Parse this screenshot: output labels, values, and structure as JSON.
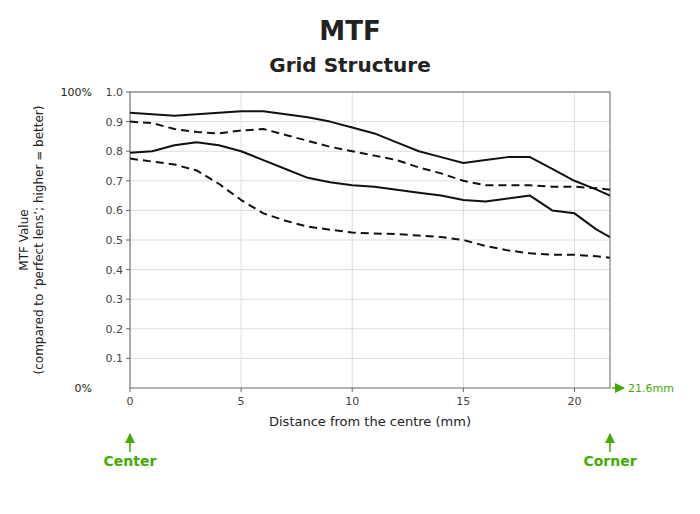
{
  "chart_data": {
    "type": "line",
    "title": "MTF",
    "subtitle": "Grid Structure",
    "x_label": "Distance from the centre (mm)",
    "y_label": "MTF Value\n(compared to ‘perfect lens’; higher = better)",
    "x": [
      0,
      1,
      2,
      3,
      4,
      5,
      6,
      7,
      8,
      9,
      10,
      11,
      12,
      13,
      14,
      15,
      16,
      17,
      18,
      19,
      20,
      21,
      21.6
    ],
    "series": [
      {
        "color": "#111111",
        "line_style": "solid",
        "values": [
          0.93,
          0.925,
          0.92,
          0.925,
          0.93,
          0.935,
          0.935,
          0.925,
          0.915,
          0.9,
          0.88,
          0.86,
          0.83,
          0.8,
          0.78,
          0.76,
          0.77,
          0.78,
          0.78,
          0.74,
          0.7,
          0.67,
          0.65
        ]
      },
      {
        "color": "#111111",
        "line_style": "solid",
        "values": [
          0.795,
          0.8,
          0.82,
          0.83,
          0.82,
          0.8,
          0.77,
          0.74,
          0.71,
          0.695,
          0.685,
          0.68,
          0.67,
          0.66,
          0.65,
          0.635,
          0.63,
          0.64,
          0.65,
          0.6,
          0.59,
          0.535,
          0.51
        ]
      },
      {
        "color": "#111111",
        "line_style": "dashed",
        "values": [
          0.9,
          0.895,
          0.875,
          0.865,
          0.86,
          0.87,
          0.875,
          0.855,
          0.835,
          0.815,
          0.8,
          0.785,
          0.77,
          0.745,
          0.725,
          0.7,
          0.685,
          0.685,
          0.685,
          0.68,
          0.68,
          0.675,
          0.67
        ]
      },
      {
        "color": "#111111",
        "line_style": "dashed",
        "values": [
          0.775,
          0.765,
          0.755,
          0.735,
          0.69,
          0.635,
          0.59,
          0.565,
          0.545,
          0.535,
          0.525,
          0.522,
          0.52,
          0.515,
          0.51,
          0.5,
          0.48,
          0.465,
          0.455,
          0.45,
          0.45,
          0.445,
          0.44
        ]
      }
    ],
    "xlim": [
      0,
      21.6
    ],
    "ylim": [
      0,
      1.0
    ],
    "xticks": [
      0,
      5,
      10,
      15,
      20
    ],
    "yticks": [
      0.1,
      0.2,
      0.3,
      0.4,
      0.5,
      0.6,
      0.7,
      0.8,
      0.9,
      {
        "value": 1.0,
        "label": "1.0"
      }
    ],
    "grid": true,
    "annotations": [
      {
        "text": "100%",
        "y": 1.0
      },
      {
        "text": "0%",
        "y": 0
      },
      {
        "text": "21.6mm",
        "x": 21.6,
        "y": 0,
        "color": "#44aa00"
      },
      {
        "text": "Center",
        "x": 0,
        "color": "#44aa00"
      },
      {
        "text": "Corner",
        "x": 21.6,
        "color": "#44aa00"
      }
    ]
  }
}
